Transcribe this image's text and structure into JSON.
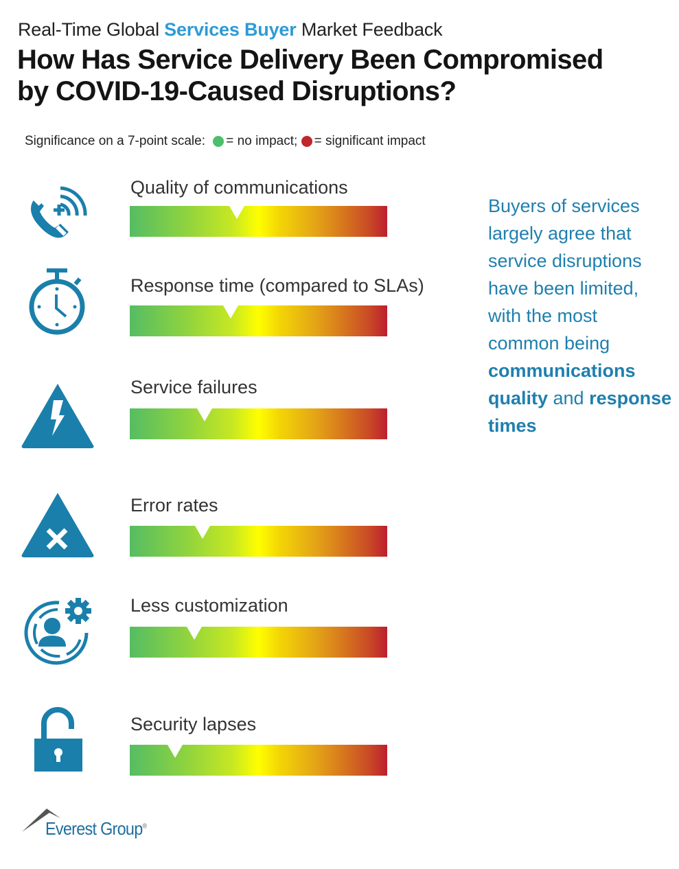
{
  "header": {
    "kicker_pre": "Real-Time Global ",
    "kicker_highlight": "Services Buyer",
    "kicker_post": " Market Feedback",
    "title_line1": "How Has Service Delivery Been Compromised",
    "title_line2": "by COVID-19-Caused Disruptions?"
  },
  "legend": {
    "prefix": "Significance on a 7-point scale: ",
    "green_text": "= no impact; ",
    "red_text": "= significant impact",
    "green_color": "#4bbf6b",
    "red_color": "#c0272d"
  },
  "callout": {
    "part1": "Buyers of services largely agree that service disruptions have been limited, with the most common being ",
    "bold1": "communications quality",
    "part2": " and ",
    "bold2": "response times"
  },
  "logo": {
    "name": "Everest Group",
    "reg": "®"
  },
  "colors": {
    "accent_blue": "#2e9bd6",
    "icon_blue": "#1a7fab",
    "callout_blue": "#1f7fae",
    "scale_low": "#55bd63",
    "scale_mid": "#ffff00",
    "scale_high": "#bd1f2e"
  },
  "chart_data": {
    "type": "bar",
    "title": "How Has Service Delivery Been Compromised by COVID-19-Caused Disruptions?",
    "subtitle": "Real-Time Global Services Buyer Market Feedback",
    "xlabel": "Significance on a 7-point scale (1 = no impact, 7 = significant impact)",
    "ylabel": "",
    "scale_min": 1,
    "scale_max": 7,
    "categories": [
      "Quality of communications",
      "Response time (compared to SLAs)",
      "Service failures",
      "Error rates",
      "Less customization",
      "Security lapses"
    ],
    "values": [
      3.5,
      3.35,
      2.75,
      2.7,
      2.5,
      2.05
    ],
    "icons": [
      "phone-call-icon",
      "stopwatch-icon",
      "warning-lightning-icon",
      "warning-x-icon",
      "user-gear-icon",
      "open-padlock-icon"
    ],
    "legend_position": "top"
  }
}
